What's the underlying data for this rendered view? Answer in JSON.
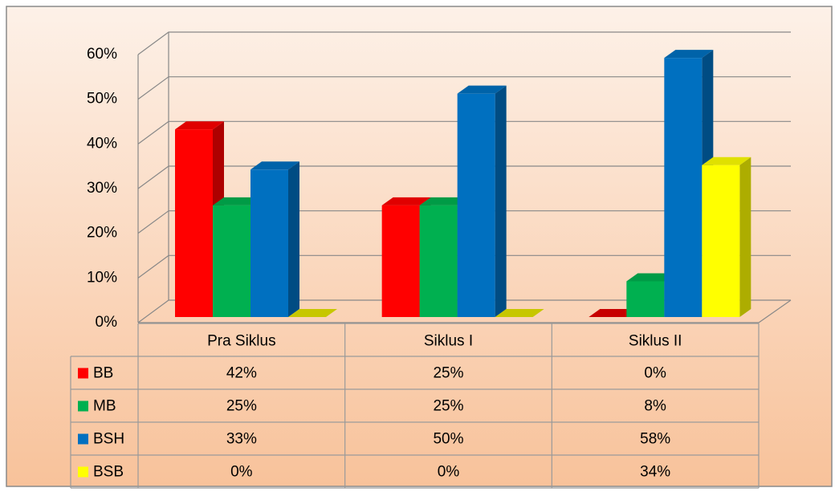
{
  "chart_data": {
    "type": "bar3d",
    "categories": [
      "Pra Siklus",
      "Siklus I",
      "Siklus II"
    ],
    "series": [
      {
        "name": "BB",
        "color": "#ff0000",
        "values": [
          42,
          25,
          0
        ],
        "value_labels": [
          "42%",
          "25%",
          "0%"
        ]
      },
      {
        "name": "MB",
        "color": "#00b050",
        "values": [
          25,
          25,
          8
        ],
        "value_labels": [
          "25%",
          "25%",
          "8%"
        ]
      },
      {
        "name": "BSH",
        "color": "#0070c0",
        "values": [
          33,
          50,
          58
        ],
        "value_labels": [
          "33%",
          "50%",
          "58%"
        ]
      },
      {
        "name": "BSB",
        "color": "#ffff00",
        "values": [
          0,
          0,
          34
        ],
        "value_labels": [
          "0%",
          "0%",
          "34%"
        ]
      }
    ],
    "ylim": [
      0,
      60
    ],
    "yticks": [
      {
        "value": 0,
        "label": "0%"
      },
      {
        "value": 10,
        "label": "10%"
      },
      {
        "value": 20,
        "label": "20%"
      },
      {
        "value": 30,
        "label": "30%"
      },
      {
        "value": 40,
        "label": "40%"
      },
      {
        "value": 50,
        "label": "50%"
      },
      {
        "value": 60,
        "label": "60%"
      }
    ],
    "grid": true,
    "data_table": true
  }
}
